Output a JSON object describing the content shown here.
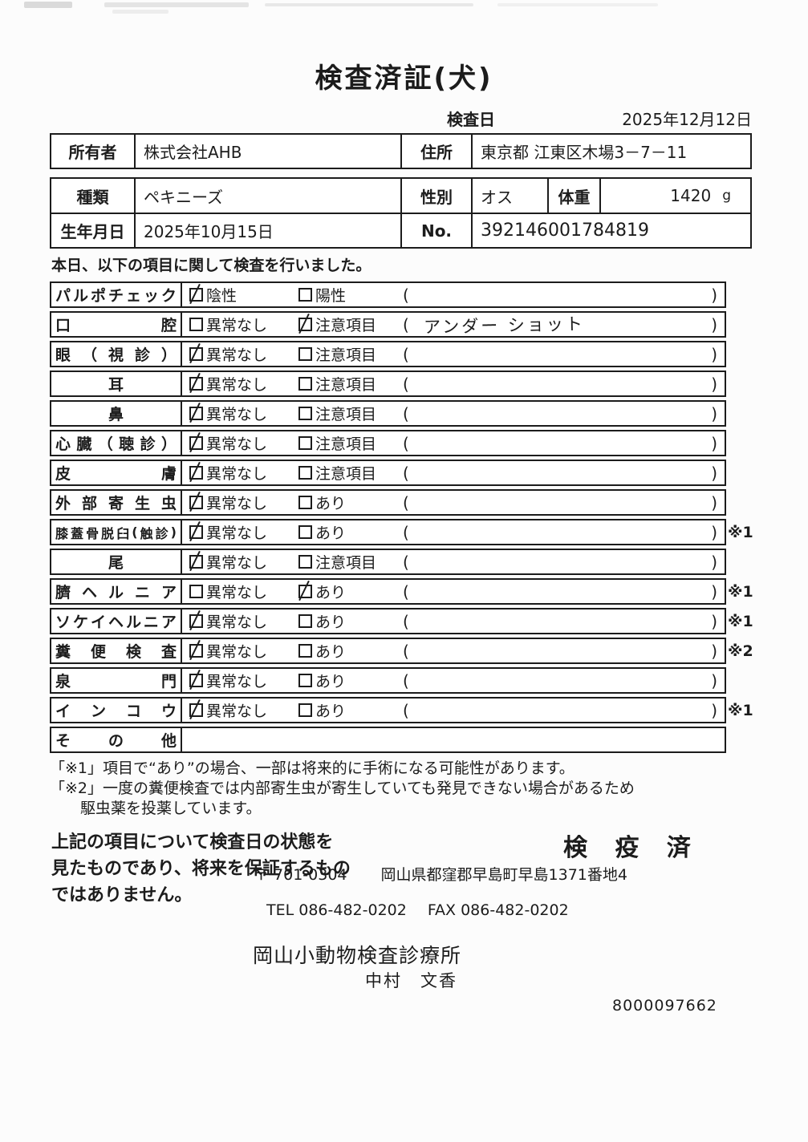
{
  "title": "検査済証(犬)",
  "exam_date": {
    "label": "検査日",
    "value": "2025年12月12日"
  },
  "owner_table": {
    "owner_label": "所有者",
    "owner_value": "株式会社AHB",
    "address_label": "住所",
    "address_value": "東京都 江東区木場3－7－11"
  },
  "pet_table": {
    "breed_label": "種類",
    "breed_value": "ペキニーズ",
    "sex_label": "性別",
    "sex_value": "オス",
    "weight_label": "体重",
    "weight_value": "1420",
    "weight_unit": "g",
    "birth_label": "生年月日",
    "birth_value": "2025年10月15日",
    "no_label": "No.",
    "no_value": "392146001784819"
  },
  "intro": "本日、以下の項目に関して検査を行いました。",
  "checklist": {
    "rows": [
      {
        "label": "パルポチェック",
        "opt1": "陰性",
        "opt1_checked": true,
        "opt2": "陽性",
        "opt2_checked": false,
        "note": "",
        "remark": ""
      },
      {
        "label": "口腔",
        "opt1": "異常なし",
        "opt1_checked": false,
        "opt2": "注意項目",
        "opt2_checked": true,
        "note": "アンダー ショット",
        "remark": ""
      },
      {
        "label": "眼（視診）",
        "opt1": "異常なし",
        "opt1_checked": true,
        "opt2": "注意項目",
        "opt2_checked": false,
        "note": "",
        "remark": ""
      },
      {
        "label": "耳",
        "opt1": "異常なし",
        "opt1_checked": true,
        "opt2": "注意項目",
        "opt2_checked": false,
        "note": "",
        "remark": ""
      },
      {
        "label": "鼻",
        "opt1": "異常なし",
        "opt1_checked": true,
        "opt2": "注意項目",
        "opt2_checked": false,
        "note": "",
        "remark": ""
      },
      {
        "label": "心臓（聴診）",
        "opt1": "異常なし",
        "opt1_checked": true,
        "opt2": "注意項目",
        "opt2_checked": false,
        "note": "",
        "remark": ""
      },
      {
        "label": "皮膚",
        "opt1": "異常なし",
        "opt1_checked": true,
        "opt2": "注意項目",
        "opt2_checked": false,
        "note": "",
        "remark": ""
      },
      {
        "label": "外部寄生虫",
        "opt1": "異常なし",
        "opt1_checked": true,
        "opt2": "あり",
        "opt2_checked": false,
        "note": "",
        "remark": ""
      },
      {
        "label": "膝蓋骨脱臼(触診)",
        "opt1": "異常なし",
        "opt1_checked": true,
        "opt2": "あり",
        "opt2_checked": false,
        "note": "",
        "remark": "※1"
      },
      {
        "label": "尾",
        "opt1": "異常なし",
        "opt1_checked": true,
        "opt2": "注意項目",
        "opt2_checked": false,
        "note": "",
        "remark": ""
      },
      {
        "label": "臍ヘルニア",
        "opt1": "異常なし",
        "opt1_checked": false,
        "opt2": "あり",
        "opt2_checked": true,
        "note": "",
        "remark": "※1"
      },
      {
        "label": "ソケイヘルニア",
        "opt1": "異常なし",
        "opt1_checked": true,
        "opt2": "あり",
        "opt2_checked": false,
        "note": "",
        "remark": "※1"
      },
      {
        "label": "糞便検査",
        "opt1": "異常なし",
        "opt1_checked": true,
        "opt2": "あり",
        "opt2_checked": false,
        "note": "",
        "remark": "※2"
      },
      {
        "label": "泉門",
        "opt1": "異常なし",
        "opt1_checked": true,
        "opt2": "あり",
        "opt2_checked": false,
        "note": "",
        "remark": ""
      },
      {
        "label": "インコウ",
        "opt1": "異常なし",
        "opt1_checked": true,
        "opt2": "あり",
        "opt2_checked": false,
        "note": "",
        "remark": "※1"
      },
      {
        "label": "その他",
        "no_options": true,
        "remark": ""
      }
    ]
  },
  "footnotes": [
    "「※1」項目で“あり”の場合、一部は将来的に手術になる可能性があります。",
    "「※2」一度の糞便検査では内部寄生虫が寄生していても発見できない場合があるため",
    "駆虫薬を投薬しています。"
  ],
  "statement_lines": [
    "上記の項目について検査日の状態を",
    "見たものであり、将来を保証するもの",
    "ではありません。"
  ],
  "quarantine_stamp": "検 疫 済",
  "clinic": {
    "postal": "〒 701-0304",
    "address": "岡山県都窪郡早島町早島1371番地4",
    "tel": "TEL 086-482-0202",
    "fax": "FAX 086-482-0202",
    "name": "岡山小動物検査診療所",
    "vet_name": "中村　文香",
    "serial": "8000097662"
  }
}
